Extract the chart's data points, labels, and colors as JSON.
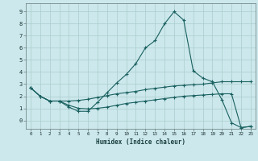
{
  "xlabel": "Humidex (Indice chaleur)",
  "background_color": "#cce8ec",
  "grid_color": "#aacccc",
  "line_color": "#1a6060",
  "xlim": [
    -0.5,
    23.5
  ],
  "ylim": [
    -0.7,
    9.7
  ],
  "yticks": [
    0,
    1,
    2,
    3,
    4,
    5,
    6,
    7,
    8,
    9
  ],
  "xticks": [
    0,
    1,
    2,
    3,
    4,
    5,
    6,
    7,
    8,
    9,
    10,
    11,
    12,
    13,
    14,
    15,
    16,
    17,
    18,
    19,
    20,
    21,
    22,
    23
  ],
  "line1_x": [
    0,
    1,
    2,
    3,
    4,
    5,
    6,
    7,
    8,
    9,
    10,
    11,
    12,
    13,
    14,
    15,
    16,
    17,
    18,
    19,
    20,
    21,
    22,
    23
  ],
  "line1_y": [
    2.7,
    2.0,
    1.6,
    1.6,
    1.1,
    0.75,
    0.75,
    1.5,
    2.3,
    3.1,
    3.8,
    4.7,
    6.0,
    6.6,
    8.0,
    9.0,
    8.3,
    4.1,
    3.5,
    3.2,
    1.7,
    -0.2,
    -0.6,
    -0.5
  ],
  "line2_x": [
    0,
    1,
    2,
    3,
    4,
    5,
    6,
    7,
    8,
    9,
    10,
    11,
    12,
    13,
    14,
    15,
    16,
    17,
    18,
    19,
    20,
    21,
    22,
    23
  ],
  "line2_y": [
    2.7,
    2.0,
    1.6,
    1.6,
    1.6,
    1.65,
    1.75,
    1.9,
    2.05,
    2.2,
    2.3,
    2.4,
    2.55,
    2.65,
    2.75,
    2.85,
    2.9,
    2.95,
    3.0,
    3.1,
    3.2,
    3.2,
    3.2,
    3.2
  ],
  "line3_x": [
    0,
    1,
    2,
    3,
    4,
    5,
    6,
    7,
    8,
    9,
    10,
    11,
    12,
    13,
    14,
    15,
    16,
    17,
    18,
    19,
    20,
    21,
    22,
    23
  ],
  "line3_y": [
    2.7,
    2.0,
    1.6,
    1.6,
    1.25,
    1.0,
    0.95,
    1.0,
    1.1,
    1.25,
    1.4,
    1.5,
    1.6,
    1.7,
    1.8,
    1.9,
    2.0,
    2.05,
    2.1,
    2.15,
    2.2,
    2.2,
    -0.6,
    -0.5
  ]
}
